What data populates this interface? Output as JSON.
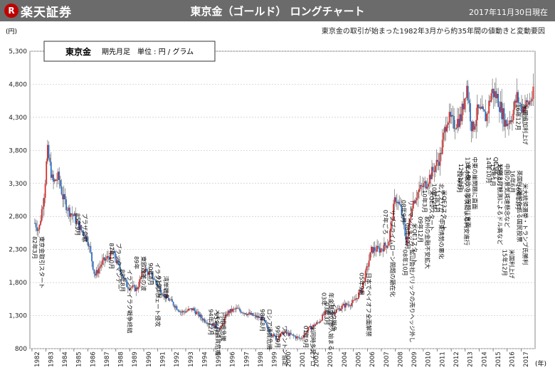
{
  "header": {
    "logo_mark": "R",
    "logo_text": "楽天証券",
    "title": "東京金（ゴールド） ロングチャート",
    "date": "2017年11月30日現在"
  },
  "subtitle": "東京金の取引が始まった1982年3月から約35年間の値動きと変動要因",
  "legend": {
    "name": "東京金",
    "desc": "期先月足　単位 : 円 /  グラム"
  },
  "colors": {
    "up": "#d92b2b",
    "down": "#2b6fc4",
    "wick": "#555555",
    "grid": "#c8c8c8"
  },
  "chart_data": {
    "type": "candlestick",
    "y_unit": "(円)",
    "x_unit": "(年)",
    "ylim": [
      800,
      5300
    ],
    "y_ticks": [
      "800",
      "1,300",
      "1,800",
      "2,300",
      "2,800",
      "3,300",
      "3,800",
      "4,300",
      "4,800",
      "5,300"
    ],
    "x_ticks": [
      "1982",
      "1983",
      "1984",
      "1985",
      "1986",
      "1987",
      "1988",
      "1989",
      "1990",
      "1991",
      "1992",
      "1993",
      "1994",
      "1995",
      "1996",
      "1997",
      "1998",
      "1999",
      "2000",
      "2001",
      "2002",
      "2003",
      "2004",
      "2005",
      "2006",
      "2007",
      "2008",
      "2009",
      "2010",
      "2011",
      "2012",
      "2013",
      "2014",
      "2015",
      "2016",
      "2017"
    ],
    "grid": "y",
    "yearly_path": [
      {
        "year": 1982.2,
        "price": 2700
      },
      {
        "year": 1982.5,
        "price": 2600
      },
      {
        "year": 1982.9,
        "price": 3200
      },
      {
        "year": 1983.1,
        "price": 3800
      },
      {
        "year": 1983.5,
        "price": 3300
      },
      {
        "year": 1983.9,
        "price": 3400
      },
      {
        "year": 1984.2,
        "price": 3100
      },
      {
        "year": 1984.6,
        "price": 2900
      },
      {
        "year": 1985.0,
        "price": 2800
      },
      {
        "year": 1985.5,
        "price": 2600
      },
      {
        "year": 1986.0,
        "price": 2450
      },
      {
        "year": 1986.5,
        "price": 1900
      },
      {
        "year": 1987.0,
        "price": 2100
      },
      {
        "year": 1987.8,
        "price": 2250
      },
      {
        "year": 1988.3,
        "price": 2000
      },
      {
        "year": 1988.8,
        "price": 1750
      },
      {
        "year": 1989.5,
        "price": 1700
      },
      {
        "year": 1990.0,
        "price": 2000
      },
      {
        "year": 1990.6,
        "price": 1900
      },
      {
        "year": 1991.0,
        "price": 1750
      },
      {
        "year": 1991.5,
        "price": 1600
      },
      {
        "year": 1992.0,
        "price": 1500
      },
      {
        "year": 1992.7,
        "price": 1350
      },
      {
        "year": 1993.5,
        "price": 1400
      },
      {
        "year": 1994.2,
        "price": 1250
      },
      {
        "year": 1995.0,
        "price": 1150
      },
      {
        "year": 1995.5,
        "price": 1100
      },
      {
        "year": 1996.0,
        "price": 1350
      },
      {
        "year": 1996.6,
        "price": 1400
      },
      {
        "year": 1997.2,
        "price": 1350
      },
      {
        "year": 1997.8,
        "price": 1300
      },
      {
        "year": 1998.5,
        "price": 1250
      },
      {
        "year": 1999.0,
        "price": 1050
      },
      {
        "year": 1999.5,
        "price": 950
      },
      {
        "year": 2000.0,
        "price": 1050
      },
      {
        "year": 2000.6,
        "price": 1000
      },
      {
        "year": 2001.2,
        "price": 950
      },
      {
        "year": 2001.8,
        "price": 1100
      },
      {
        "year": 2002.5,
        "price": 1200
      },
      {
        "year": 2003.0,
        "price": 1350
      },
      {
        "year": 2003.6,
        "price": 1350
      },
      {
        "year": 2004.3,
        "price": 1450
      },
      {
        "year": 2005.0,
        "price": 1500
      },
      {
        "year": 2005.6,
        "price": 1700
      },
      {
        "year": 2006.3,
        "price": 2300
      },
      {
        "year": 2006.9,
        "price": 2300
      },
      {
        "year": 2007.5,
        "price": 2400
      },
      {
        "year": 2008.0,
        "price": 3100
      },
      {
        "year": 2008.4,
        "price": 2900
      },
      {
        "year": 2008.8,
        "price": 2400
      },
      {
        "year": 2009.2,
        "price": 3000
      },
      {
        "year": 2009.7,
        "price": 3200
      },
      {
        "year": 2010.2,
        "price": 3300
      },
      {
        "year": 2010.7,
        "price": 3500
      },
      {
        "year": 2011.2,
        "price": 3700
      },
      {
        "year": 2011.7,
        "price": 4300
      },
      {
        "year": 2012.2,
        "price": 4200
      },
      {
        "year": 2012.7,
        "price": 4300
      },
      {
        "year": 2013.1,
        "price": 4800
      },
      {
        "year": 2013.5,
        "price": 4100
      },
      {
        "year": 2013.9,
        "price": 4400
      },
      {
        "year": 2014.5,
        "price": 4300
      },
      {
        "year": 2014.9,
        "price": 4700
      },
      {
        "year": 2015.3,
        "price": 4600
      },
      {
        "year": 2015.9,
        "price": 4200
      },
      {
        "year": 2016.3,
        "price": 4300
      },
      {
        "year": 2016.7,
        "price": 4600
      },
      {
        "year": 2017.0,
        "price": 4450
      },
      {
        "year": 2017.5,
        "price": 4500
      },
      {
        "year": 2017.9,
        "price": 4650
      }
    ],
    "annotations": [
      {
        "text": "82年3月 東京金取引スタート",
        "x": 1982.3,
        "y": 2500
      },
      {
        "text": "85年9月 プラザ合意",
        "x": 1985.4,
        "y": 2850
      },
      {
        "text": "87年10月 ブラックマンデー",
        "x": 1987.8,
        "y": 2400
      },
      {
        "text": "88年8月 イラン・イラク戦争終結",
        "x": 1988.6,
        "y": 2000
      },
      {
        "text": "89年 東欧改革の波",
        "x": 1989.6,
        "y": 2200
      },
      {
        "text": "90年8月 イラクのクウェート侵攻",
        "x": 1990.6,
        "y": 2100
      },
      {
        "text": "91年1月 湾岸戦争",
        "x": 1991.2,
        "y": 1900
      },
      {
        "text": "94年12月 メキシコ通貨危機",
        "x": 1994.9,
        "y": 1400
      },
      {
        "text": "95年4月 円相場急騰",
        "x": 1995.3,
        "y": 1350
      },
      {
        "text": "98年8月 ロシア通貨危機",
        "x": 1998.6,
        "y": 1400
      },
      {
        "text": "99年9月 ワシントン協定",
        "x": 1999.7,
        "y": 1150
      },
      {
        "text": "01年9月 米同時多発テロ",
        "x": 2001.7,
        "y": 1150
      },
      {
        "text": "03年 年金基金の参入始まる",
        "x": 2003.0,
        "y": 1650
      },
      {
        "text": "03年3月 イラク戦争",
        "x": 2003.2,
        "y": 1500
      },
      {
        "text": "05年9月 日本でペイオフ全面解禁",
        "x": 2005.7,
        "y": 1950
      },
      {
        "text": "07年ごろ サブプライムローン問題の顕在化",
        "x": 2007.4,
        "y": 2900
      },
      {
        "text": "08年9月 リーマンショック",
        "x": 2008.7,
        "y": 3050
      },
      {
        "text": "08年10月 鉱山会社パリックの売りヘッジ外し",
        "x": 2008.8,
        "y": 2300
      },
      {
        "text": "08年12月 米QE1スタート",
        "x": 2009.0,
        "y": 2700
      },
      {
        "text": "09年12月 欧州の金融不安拡大",
        "x": 2009.9,
        "y": 2800
      },
      {
        "text": "10年3月 米QE2スタート",
        "x": 2010.2,
        "y": 3200
      },
      {
        "text": "10年12月 北アフリカ・中東情勢の悪化",
        "x": 2010.9,
        "y": 3300
      },
      {
        "text": "11年1月 米QE3スタート",
        "x": 2011.1,
        "y": 3200
      },
      {
        "text": "12年12月 米、財政の崖問題に直面",
        "x": 2012.8,
        "y": 3600
      },
      {
        "text": "12年9月 アベノミクスによる円安進行",
        "x": 2012.7,
        "y": 3500
      },
      {
        "text": "13年4月 中東の崖問題に直面",
        "x": 2013.3,
        "y": 3700
      },
      {
        "text": "14年10月 QE3終了",
        "x": 2014.8,
        "y": 3700
      },
      {
        "text": "15年1月 米利上げ観測によるドル高など",
        "x": 2015.1,
        "y": 3600
      },
      {
        "text": "15年8月 中国の景気減速懸念など",
        "x": 2015.6,
        "y": 3600
      },
      {
        "text": "16年6月 英国EU離脱を巡る国民投票",
        "x": 2016.5,
        "y": 3500
      },
      {
        "text": "16年11月 米大統領選挙・トランプ氏勝利",
        "x": 2016.9,
        "y": 3300
      },
      {
        "text": "15年12月 米国利上げ",
        "x": 2015.95,
        "y": 2300
      },
      {
        "text": "16年12月 米国追加利上げ",
        "x": 2016.9,
        "y": 4500
      }
    ]
  }
}
